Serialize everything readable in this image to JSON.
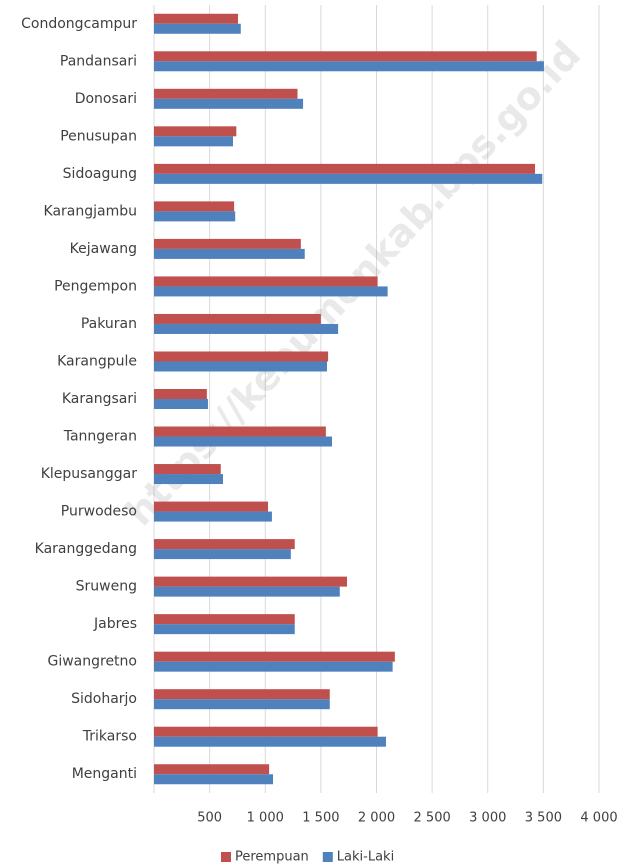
{
  "chart_data": {
    "type": "hbar",
    "categories": [
      "Condongcampur",
      "Pandansari",
      "Donosari",
      "Penusupan",
      "Sidoagung",
      "Karangjambu",
      "Kejawang",
      "Pengempon",
      "Pakuran",
      "Karangpule",
      "Karangsari",
      "Tanngeran",
      "Klepusanggar",
      "Purwodeso",
      "Karanggedang",
      "Sruweng",
      "Jabres",
      "Giwangretno",
      "Sidoharjo",
      "Trikarso",
      "Menganti"
    ],
    "series": [
      {
        "name": "Perempuan",
        "color": "#c0504d",
        "values": [
          755,
          3440,
          1290,
          740,
          3425,
          720,
          1320,
          2010,
          1500,
          1565,
          475,
          1545,
          600,
          1025,
          1265,
          1735,
          1265,
          2165,
          1580,
          2010,
          1035
        ]
      },
      {
        "name": "Laki-Laki",
        "color": "#4f81bd",
        "values": [
          780,
          3505,
          1340,
          710,
          3490,
          730,
          1355,
          2100,
          1655,
          1555,
          485,
          1600,
          620,
          1060,
          1230,
          1670,
          1265,
          2145,
          1580,
          2085,
          1070
        ]
      }
    ],
    "xlim": [
      0,
      4000
    ],
    "xticks": [
      500,
      {
        "value": 1000,
        "label": "1 000"
      },
      {
        "value": 1500,
        "label": "1 500"
      },
      {
        "value": 2000,
        "label": "2 000"
      },
      {
        "value": 2500,
        "label": "2 500"
      },
      {
        "value": 3000,
        "label": "3 000"
      },
      {
        "value": 3500,
        "label": "3 500"
      },
      {
        "value": 4000,
        "label": "4 000"
      }
    ],
    "grid": true,
    "legend": "bottom",
    "watermark": "https://kebumenkab.bps.go.id"
  }
}
